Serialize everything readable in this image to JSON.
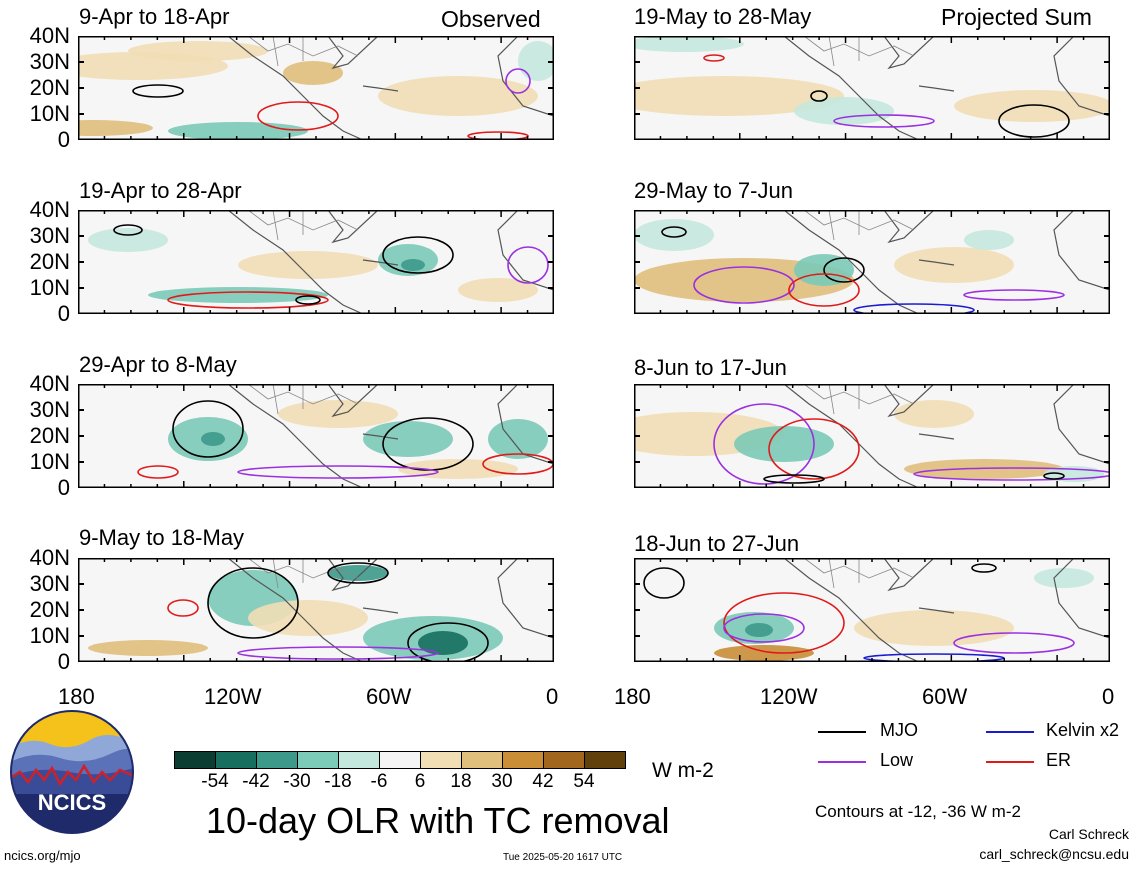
{
  "chart_data": {
    "type": "heatmap",
    "title": "10-day OLR with TC removal",
    "units": "W m-2",
    "y_tick_labels": [
      "40N",
      "30N",
      "20N",
      "10N",
      "0"
    ],
    "x_tick_labels": [
      "180",
      "120W",
      "60W",
      "0"
    ],
    "column_headers": {
      "left": "Observed",
      "right": "Projected Sum"
    },
    "panels": [
      {
        "title": "9-Apr to 18-Apr",
        "column": "left",
        "row": 0
      },
      {
        "title": "19-Apr to 28-Apr",
        "column": "left",
        "row": 1
      },
      {
        "title": "29-Apr to 8-May",
        "column": "left",
        "row": 2
      },
      {
        "title": "9-May to 18-May",
        "column": "left",
        "row": 3
      },
      {
        "title": "19-May to 28-May",
        "column": "right",
        "row": 0
      },
      {
        "title": "29-May to 7-Jun",
        "column": "right",
        "row": 1
      },
      {
        "title": "8-Jun to 17-Jun",
        "column": "right",
        "row": 2
      },
      {
        "title": "18-Jun to 27-Jun",
        "column": "right",
        "row": 3
      }
    ],
    "colorbar": {
      "tick_labels": [
        "-54",
        "-42",
        "-30",
        "-18",
        "-6",
        "6",
        "18",
        "30",
        "42",
        "54"
      ],
      "colors": [
        "#0b3d33",
        "#17705f",
        "#3d9a8b",
        "#7ccab8",
        "#c5e8de",
        "#f5f5f5",
        "#f1deb5",
        "#e0bf7d",
        "#c98e36",
        "#a2661c",
        "#62400c"
      ]
    },
    "legend": [
      {
        "label": "MJO",
        "color": "#000000"
      },
      {
        "label": "Kelvin x2",
        "color": "#1a1ad1"
      },
      {
        "label": "Low",
        "color": "#9b30e0"
      },
      {
        "label": "ER",
        "color": "#e01a1a"
      }
    ],
    "contour_note": "Contours at -12, -36 W m-2"
  },
  "footer": {
    "logo_text": "NCICS",
    "url": "ncics.org/mjo",
    "timestamp": "Tue 2025-05-20 1617 UTC",
    "author": "Carl Schreck",
    "email": "carl_schreck@ncsu.edu"
  }
}
